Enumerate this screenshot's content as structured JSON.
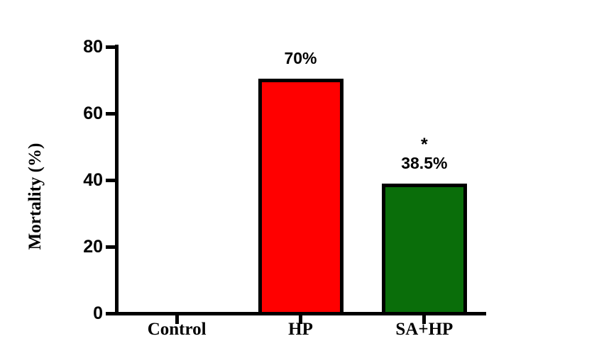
{
  "chart_data": {
    "type": "bar",
    "title": "",
    "xlabel": "",
    "ylabel": "Mortality (%)",
    "categories": [
      "Control",
      "HP",
      "SA+HP"
    ],
    "values": [
      0,
      70,
      38.5
    ],
    "value_labels": [
      "",
      "70%",
      "38.5%"
    ],
    "bar_colors": [
      "#ffffff",
      "#ff0000",
      "#0a6e0a"
    ],
    "bar_border_color": "#000000",
    "axis_color": "#000000",
    "ylim": [
      0,
      80
    ],
    "yticks": [
      "0",
      "20",
      "40",
      "60",
      "80"
    ],
    "grid": false,
    "legend_position": "none",
    "annotations": [
      {
        "category": "SA+HP",
        "text": "*"
      }
    ]
  }
}
